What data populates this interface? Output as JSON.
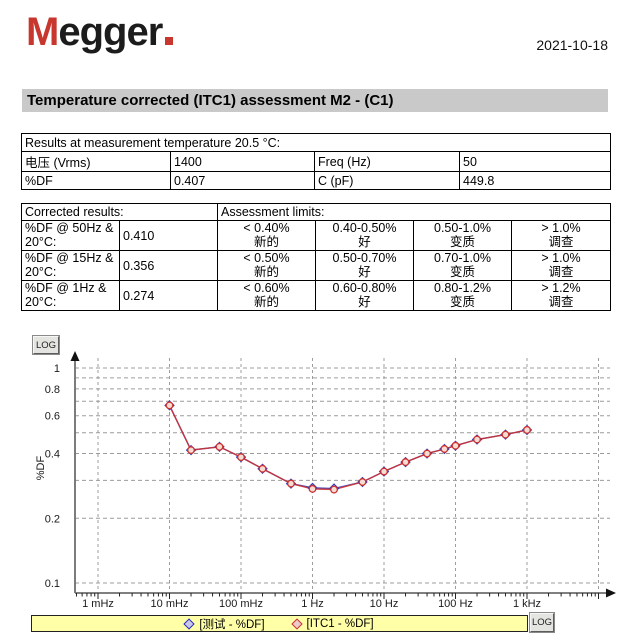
{
  "header": {
    "logo_m": "M",
    "logo_rest": "egger",
    "date": "2021-10-18"
  },
  "title": "Temperature corrected (ITC1) assessment M2 - (C1)",
  "results_table": {
    "caption": "Results at measurement temperature 20.5 °C:",
    "rows": [
      [
        "电压 (Vrms)",
        "1400",
        "Freq (Hz)",
        "50"
      ],
      [
        "%DF",
        "0.407",
        "C (pF)",
        "449.8"
      ]
    ]
  },
  "corrected_table": {
    "header_left": "Corrected results:",
    "header_right": "Assessment limits:",
    "rows": [
      {
        "label1": "%DF @ 50Hz &",
        "label2": "20°C:",
        "value": "0.410",
        "limits": [
          [
            "< 0.40%",
            "新的"
          ],
          [
            "0.40-0.50%",
            "好"
          ],
          [
            "0.50-1.0%",
            "变质"
          ],
          [
            "> 1.0%",
            "调查"
          ]
        ]
      },
      {
        "label1": "%DF @ 15Hz &",
        "label2": "20°C:",
        "value": "0.356",
        "limits": [
          [
            "< 0.50%",
            "新的"
          ],
          [
            "0.50-0.70%",
            "好"
          ],
          [
            "0.70-1.0%",
            "变质"
          ],
          [
            "> 1.0%",
            "调查"
          ]
        ]
      },
      {
        "label1": "%DF @ 1Hz &",
        "label2": "20°C:",
        "value": "0.274",
        "limits": [
          [
            "< 0.60%",
            "新的"
          ],
          [
            "0.60-0.80%",
            "好"
          ],
          [
            "0.80-1.2%",
            "变质"
          ],
          [
            "> 1.2%",
            "调查"
          ]
        ]
      }
    ]
  },
  "chart_data": {
    "type": "line",
    "x_scale": "log",
    "y_scale": "log",
    "x_unit": "Hz",
    "ylabel": "%DF",
    "xlim": [
      0.0005,
      15000
    ],
    "ylim": [
      0.09,
      1.1
    ],
    "grid": "dashed",
    "legend_position": "bottom",
    "log_button_label": "LOG",
    "x_ticks": [
      {
        "f": 0.001,
        "label": "1 mHz"
      },
      {
        "f": 0.01,
        "label": "10 mHz"
      },
      {
        "f": 0.1,
        "label": "100 mHz"
      },
      {
        "f": 1,
        "label": "1 Hz"
      },
      {
        "f": 10,
        "label": "10 Hz"
      },
      {
        "f": 100,
        "label": "100 Hz"
      },
      {
        "f": 1000,
        "label": "1 kHz"
      }
    ],
    "x_gridlines": [
      0.001,
      0.01,
      0.1,
      1,
      10,
      100,
      1000,
      10000
    ],
    "y_ticks": [
      1,
      0.8,
      0.6,
      0.4,
      0.2,
      0.1
    ],
    "y_gridlines": [
      1,
      0.9,
      0.8,
      0.7,
      0.6,
      0.5,
      0.4,
      0.3,
      0.2,
      0.1
    ],
    "series": [
      {
        "name": "[测试 - %DF]",
        "color": "#3a3ab4",
        "marker": "diamond",
        "marker_fill": "#d8d8f2",
        "x": [
          0.01,
          0.02,
          0.05,
          0.1,
          0.2,
          0.5,
          1,
          2,
          5,
          10,
          20,
          40,
          70,
          100,
          200,
          500,
          1000
        ],
        "values": [
          0.67,
          0.415,
          0.43,
          0.385,
          0.34,
          0.29,
          0.277,
          0.275,
          0.295,
          0.33,
          0.365,
          0.4,
          0.42,
          0.435,
          0.465,
          0.49,
          0.515
        ]
      },
      {
        "name": "[ITC1 - %DF]",
        "color": "#cc3232",
        "marker": "circle",
        "marker_fill": "#f6ddd2",
        "x": [
          0.01,
          0.02,
          0.05,
          0.1,
          0.2,
          0.5,
          1,
          2,
          5,
          10,
          20,
          40,
          70,
          100,
          200,
          500,
          1000
        ],
        "values": [
          0.67,
          0.415,
          0.43,
          0.385,
          0.34,
          0.29,
          0.274,
          0.272,
          0.295,
          0.33,
          0.365,
          0.4,
          0.42,
          0.435,
          0.465,
          0.49,
          0.515
        ]
      }
    ]
  }
}
